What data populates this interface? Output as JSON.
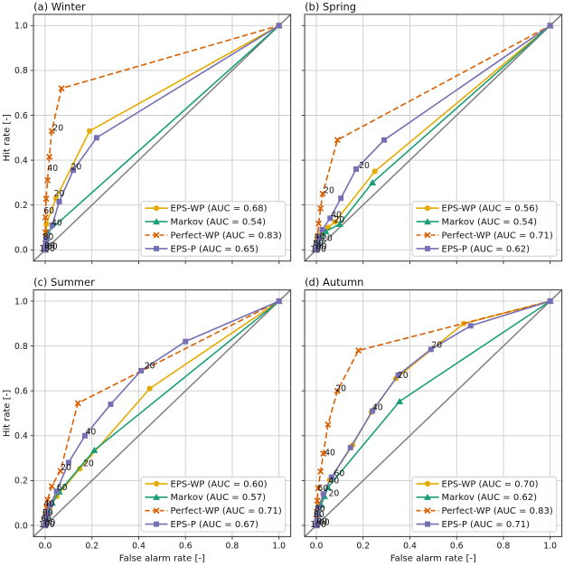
{
  "figure": {
    "background": "#ffffff",
    "xlabel": "False alarm rate [-]",
    "ylabel": "Hit rate [-]",
    "xticks": [
      "0.0",
      "0.2",
      "0.4",
      "0.6",
      "0.8",
      "1.0"
    ],
    "yticks": [
      "0.0",
      "0.2",
      "0.4",
      "0.6",
      "0.8",
      "1.0"
    ],
    "grid_color": "#cccccc",
    "spine_color": "#333333",
    "text_color": "#111111",
    "diagonal_color": "#808080",
    "series_styles": {
      "EPS-WP": {
        "color": "#e6ab02",
        "marker": "circle",
        "line": "solid"
      },
      "Markov": {
        "color": "#1b9e77",
        "marker": "triangle",
        "line": "solid"
      },
      "Perfect-WP": {
        "color": "#d95f02",
        "marker": "x",
        "line": "dashed"
      },
      "EPS-P": {
        "color": "#7570b3",
        "marker": "square",
        "line": "solid"
      }
    }
  },
  "chart_data": [
    {
      "id": "a",
      "title": "(a) Winter",
      "type": "line",
      "xlabel": "False alarm rate [-]",
      "ylabel": "Hit rate [-]",
      "xlim": [
        -0.05,
        1.05
      ],
      "ylim": [
        -0.05,
        1.05
      ],
      "series": [
        {
          "name": "EPS-WP",
          "auc": 0.68,
          "legend_label": "EPS-WP (AUC = 0.68)",
          "points": [
            [
              0,
              0
            ],
            [
              0.002,
              0.012
            ],
            [
              0.003,
              0.03
            ],
            [
              0.004,
              0.06
            ],
            [
              0.005,
              0.115
            ],
            [
              0.046,
              0.23
            ],
            [
              0.19,
              0.53
            ],
            [
              1,
              1
            ]
          ]
        },
        {
          "name": "Markov",
          "auc": 0.54,
          "legend_label": "Markov (AUC = 0.54)",
          "points": [
            [
              0,
              0
            ],
            [
              0.002,
              0.015
            ],
            [
              0.004,
              0.03
            ],
            [
              0.007,
              0.05
            ],
            [
              0.012,
              0.08
            ],
            [
              1,
              1
            ]
          ]
        },
        {
          "name": "Perfect-WP",
          "auc": 0.83,
          "legend_label": "Perfect-WP (AUC = 0.83)",
          "points": [
            [
              0,
              0
            ],
            [
              0.0005,
              0.03
            ],
            [
              0.001,
              0.078
            ],
            [
              0.001,
              0.145
            ],
            [
              0.004,
              0.228
            ],
            [
              0.01,
              0.31
            ],
            [
              0.018,
              0.415
            ],
            [
              0.028,
              0.53
            ],
            [
              0.07,
              0.72
            ],
            [
              1,
              1
            ]
          ]
        },
        {
          "name": "EPS-P",
          "auc": 0.65,
          "legend_label": "EPS-P (AUC = 0.65)",
          "points": [
            [
              0,
              0
            ],
            [
              0.001,
              0.012
            ],
            [
              0.002,
              0.025
            ],
            [
              0.004,
              0.05
            ],
            [
              0.03,
              0.11
            ],
            [
              0.06,
              0.215
            ],
            [
              0.12,
              0.355
            ],
            [
              0.22,
              0.5
            ],
            [
              1,
              1
            ]
          ]
        }
      ],
      "annotations": [
        {
          "text": "20",
          "x": 0.055,
          "y": 0.545
        },
        {
          "text": "40",
          "x": 0.032,
          "y": 0.365
        },
        {
          "text": "60",
          "x": 0.016,
          "y": 0.175
        },
        {
          "text": "20",
          "x": 0.06,
          "y": 0.252
        },
        {
          "text": "40",
          "x": 0.05,
          "y": 0.122
        },
        {
          "text": "20",
          "x": 0.133,
          "y": 0.372
        },
        {
          "text": "80",
          "x": 0.013,
          "y": 0.058
        },
        {
          "text": "00",
          "x": 0.02,
          "y": 0.02
        },
        {
          "text": "00",
          "x": 0.03,
          "y": 0.016
        },
        {
          "text": "100",
          "x": 0.008,
          "y": 0.006
        }
      ]
    },
    {
      "id": "b",
      "title": "(b) Spring",
      "type": "line",
      "xlabel": "False alarm rate [-]",
      "ylabel": "Hit rate [-]",
      "xlim": [
        -0.05,
        1.05
      ],
      "ylim": [
        -0.05,
        1.05
      ],
      "series": [
        {
          "name": "EPS-WP",
          "auc": 0.56,
          "legend_label": "EPS-WP (AUC = 0.56)",
          "points": [
            [
              0,
              0
            ],
            [
              0.002,
              0.012
            ],
            [
              0.005,
              0.028
            ],
            [
              0.01,
              0.048
            ],
            [
              0.022,
              0.07
            ],
            [
              0.05,
              0.1
            ],
            [
              0.08,
              0.125
            ],
            [
              0.25,
              0.35
            ],
            [
              1,
              1
            ]
          ]
        },
        {
          "name": "Markov",
          "auc": 0.54,
          "legend_label": "Markov (AUC = 0.54)",
          "points": [
            [
              0,
              0
            ],
            [
              0.004,
              0.018
            ],
            [
              0.009,
              0.04
            ],
            [
              0.018,
              0.06
            ],
            [
              0.04,
              0.082
            ],
            [
              0.1,
              0.115
            ],
            [
              0.24,
              0.3
            ],
            [
              1,
              1
            ]
          ]
        },
        {
          "name": "Perfect-WP",
          "auc": 0.71,
          "legend_label": "Perfect-WP (AUC = 0.71)",
          "points": [
            [
              0,
              0
            ],
            [
              0.001,
              0.03
            ],
            [
              0.005,
              0.06
            ],
            [
              0.01,
              0.117
            ],
            [
              0.018,
              0.185
            ],
            [
              0.027,
              0.25
            ],
            [
              0.09,
              0.49
            ],
            [
              1,
              1
            ]
          ]
        },
        {
          "name": "EPS-P",
          "auc": 0.62,
          "legend_label": "EPS-P (AUC = 0.62)",
          "points": [
            [
              0,
              0
            ],
            [
              0.002,
              0.012
            ],
            [
              0.005,
              0.03
            ],
            [
              0.012,
              0.055
            ],
            [
              0.025,
              0.09
            ],
            [
              0.059,
              0.141
            ],
            [
              0.105,
              0.23
            ],
            [
              0.17,
              0.36
            ],
            [
              0.29,
              0.49
            ],
            [
              1,
              1
            ]
          ]
        }
      ],
      "annotations": [
        {
          "text": "20",
          "x": 0.054,
          "y": 0.267
        },
        {
          "text": "20",
          "x": 0.205,
          "y": 0.377
        },
        {
          "text": "40",
          "x": 0.085,
          "y": 0.158
        },
        {
          "text": "20",
          "x": 0.098,
          "y": 0.136
        },
        {
          "text": "40",
          "x": 0.014,
          "y": 0.06
        },
        {
          "text": "20",
          "x": 0.046,
          "y": 0.052
        },
        {
          "text": "80",
          "x": 0.008,
          "y": 0.03
        },
        {
          "text": "00",
          "x": 0.022,
          "y": 0.016
        },
        {
          "text": "100",
          "x": 0.008,
          "y": 0.005
        }
      ]
    },
    {
      "id": "c",
      "title": "(c) Summer",
      "type": "line",
      "xlabel": "False alarm rate [-]",
      "ylabel": "Hit rate [-]",
      "xlim": [
        -0.05,
        1.05
      ],
      "ylim": [
        -0.05,
        1.05
      ],
      "series": [
        {
          "name": "EPS-WP",
          "auc": 0.6,
          "legend_label": "EPS-WP (AUC = 0.60)",
          "points": [
            [
              0,
              0
            ],
            [
              0.002,
              0.012
            ],
            [
              0.005,
              0.03
            ],
            [
              0.01,
              0.05
            ],
            [
              0.02,
              0.08
            ],
            [
              0.05,
              0.13
            ],
            [
              0.148,
              0.253
            ],
            [
              0.447,
              0.61
            ],
            [
              1,
              1
            ]
          ]
        },
        {
          "name": "Markov",
          "auc": 0.57,
          "legend_label": "Markov (AUC = 0.57)",
          "points": [
            [
              0,
              0
            ],
            [
              0.003,
              0.02
            ],
            [
              0.008,
              0.04
            ],
            [
              0.015,
              0.065
            ],
            [
              0.03,
              0.1
            ],
            [
              0.06,
              0.15
            ],
            [
              0.21,
              0.335
            ],
            [
              1,
              1
            ]
          ]
        },
        {
          "name": "Perfect-WP",
          "auc": 0.71,
          "legend_label": "Perfect-WP (AUC = 0.71)",
          "points": [
            [
              0,
              0
            ],
            [
              0.001,
              0.022
            ],
            [
              0.002,
              0.05
            ],
            [
              0.005,
              0.08
            ],
            [
              0.01,
              0.114
            ],
            [
              0.028,
              0.175
            ],
            [
              0.065,
              0.243
            ],
            [
              0.14,
              0.545
            ],
            [
              1,
              1
            ]
          ]
        },
        {
          "name": "EPS-P",
          "auc": 0.67,
          "legend_label": "EPS-P (AUC = 0.67)",
          "points": [
            [
              0,
              0
            ],
            [
              0.002,
              0.02
            ],
            [
              0.005,
              0.04
            ],
            [
              0.01,
              0.062
            ],
            [
              0.02,
              0.09
            ],
            [
              0.049,
              0.152
            ],
            [
              0.1,
              0.28
            ],
            [
              0.17,
              0.4
            ],
            [
              0.28,
              0.54
            ],
            [
              0.41,
              0.69
            ],
            [
              0.6,
              0.82
            ],
            [
              1,
              1
            ]
          ]
        }
      ],
      "annotations": [
        {
          "text": "20",
          "x": 0.185,
          "y": 0.278
        },
        {
          "text": "40",
          "x": 0.195,
          "y": 0.418
        },
        {
          "text": "60",
          "x": 0.072,
          "y": 0.17
        },
        {
          "text": "20",
          "x": 0.447,
          "y": 0.712
        },
        {
          "text": "20",
          "x": 0.089,
          "y": 0.26
        },
        {
          "text": "40",
          "x": 0.017,
          "y": 0.098
        },
        {
          "text": "80",
          "x": 0.011,
          "y": 0.058
        },
        {
          "text": "60",
          "x": 0.004,
          "y": 0.032
        },
        {
          "text": "00",
          "x": 0.021,
          "y": 0.014
        },
        {
          "text": "100",
          "x": 0.007,
          "y": 0.005
        }
      ]
    },
    {
      "id": "d",
      "title": "(d) Autumn",
      "type": "line",
      "xlabel": "False alarm rate [-]",
      "ylabel": "Hit rate [-]",
      "xlim": [
        -0.05,
        1.05
      ],
      "ylim": [
        -0.05,
        1.05
      ],
      "series": [
        {
          "name": "EPS-WP",
          "auc": 0.7,
          "legend_label": "EPS-WP (AUC = 0.70)",
          "points": [
            [
              0,
              0
            ],
            [
              0.002,
              0.02
            ],
            [
              0.005,
              0.05
            ],
            [
              0.012,
              0.09
            ],
            [
              0.03,
              0.14
            ],
            [
              0.057,
              0.203
            ],
            [
              0.155,
              0.358
            ],
            [
              0.235,
              0.505
            ],
            [
              0.34,
              0.655
            ],
            [
              0.63,
              0.9
            ],
            [
              1,
              1
            ]
          ]
        },
        {
          "name": "Markov",
          "auc": 0.62,
          "legend_label": "Markov (AUC = 0.62)",
          "points": [
            [
              0,
              0
            ],
            [
              0.004,
              0.02
            ],
            [
              0.01,
              0.05
            ],
            [
              0.02,
              0.09
            ],
            [
              0.035,
              0.13
            ],
            [
              0.05,
              0.17
            ],
            [
              0.356,
              0.553
            ],
            [
              1,
              1
            ]
          ]
        },
        {
          "name": "Perfect-WP",
          "auc": 0.83,
          "legend_label": "Perfect-WP (AUC = 0.83)",
          "points": [
            [
              0,
              0
            ],
            [
              0.001,
              0.03
            ],
            [
              0.002,
              0.06
            ],
            [
              0.004,
              0.11
            ],
            [
              0.008,
              0.166
            ],
            [
              0.018,
              0.24
            ],
            [
              0.03,
              0.32
            ],
            [
              0.05,
              0.45
            ],
            [
              0.09,
              0.6
            ],
            [
              0.18,
              0.78
            ],
            [
              1,
              1
            ]
          ]
        },
        {
          "name": "EPS-P",
          "auc": 0.71,
          "legend_label": "EPS-P (AUC = 0.71)",
          "points": [
            [
              0,
              0
            ],
            [
              0.002,
              0.02
            ],
            [
              0.005,
              0.05
            ],
            [
              0.01,
              0.08
            ],
            [
              0.03,
              0.14
            ],
            [
              0.065,
              0.215
            ],
            [
              0.146,
              0.347
            ],
            [
              0.24,
              0.51
            ],
            [
              0.35,
              0.67
            ],
            [
              0.49,
              0.785
            ],
            [
              0.66,
              0.89
            ],
            [
              1,
              1
            ]
          ]
        }
      ],
      "annotations": [
        {
          "text": "20",
          "x": 0.515,
          "y": 0.806
        },
        {
          "text": "20",
          "x": 0.37,
          "y": 0.67
        },
        {
          "text": "40",
          "x": 0.262,
          "y": 0.528
        },
        {
          "text": "20",
          "x": 0.105,
          "y": 0.612
        },
        {
          "text": "40",
          "x": 0.058,
          "y": 0.325
        },
        {
          "text": "60",
          "x": 0.098,
          "y": 0.233
        },
        {
          "text": "40",
          "x": 0.075,
          "y": 0.2
        },
        {
          "text": "20",
          "x": 0.075,
          "y": 0.144
        },
        {
          "text": "60",
          "x": 0.028,
          "y": 0.166
        },
        {
          "text": "80",
          "x": 0.015,
          "y": 0.075
        },
        {
          "text": "80",
          "x": 0.011,
          "y": 0.05
        },
        {
          "text": "00",
          "x": 0.024,
          "y": 0.02
        },
        {
          "text": "00",
          "x": 0.034,
          "y": 0.016
        },
        {
          "text": "100",
          "x": 0.008,
          "y": 0.005
        }
      ]
    }
  ]
}
